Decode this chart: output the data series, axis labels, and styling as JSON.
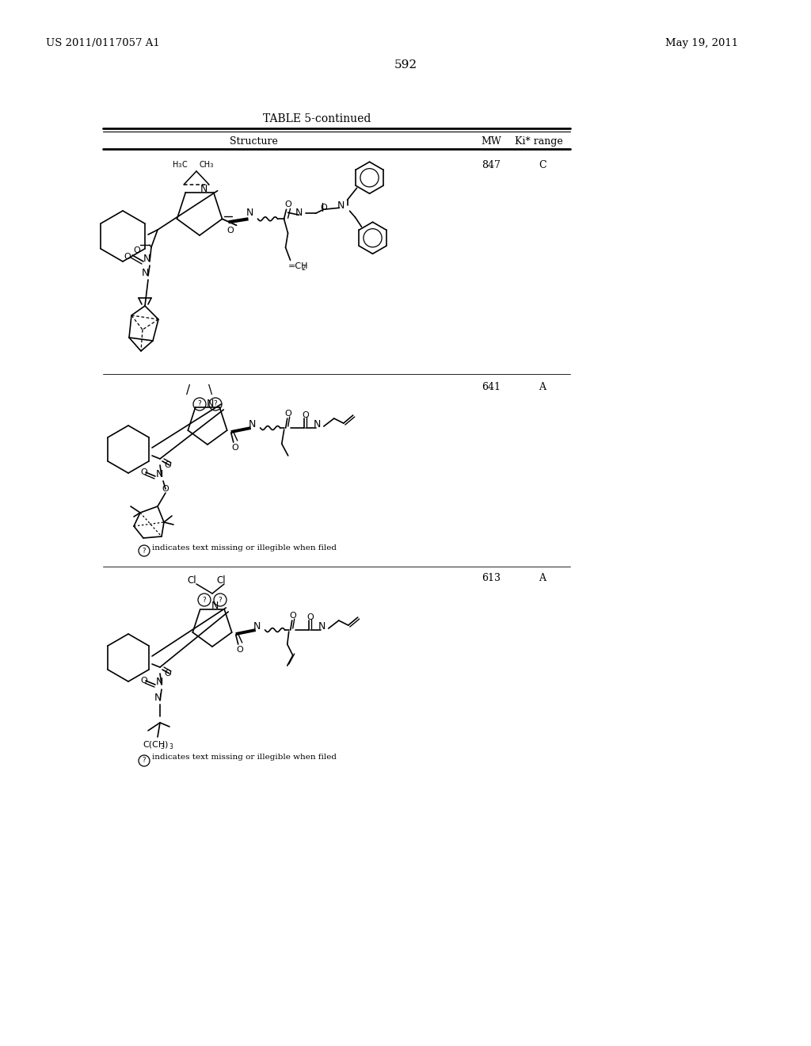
{
  "patent_number": "US 2011/0117057 A1",
  "date": "May 19, 2011",
  "page_number": "592",
  "table_title": "TABLE 5-continued",
  "col1_header": "Structure",
  "col2_header": "MW",
  "col3_header": "Ki* range",
  "row1_mw": "847",
  "row1_ki": "C",
  "row2_mw": "641",
  "row2_ki": "A",
  "row3_mw": "613",
  "row3_ki": "A",
  "illegible_note": "indicates text missing or illegible when filed",
  "bg": "#ffffff"
}
